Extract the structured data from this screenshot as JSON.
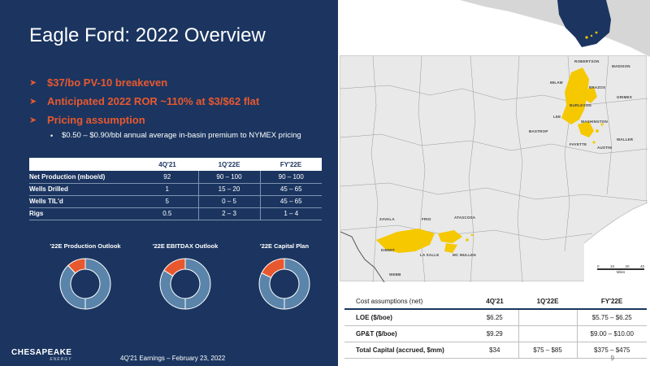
{
  "title": "Eagle Ford: 2022 Overview",
  "bullets": [
    "$37/bo PV-10 breakeven",
    "Anticipated 2022 ROR ~110% at $3/$62 flat",
    "Pricing assumption"
  ],
  "sub_bullet": "$0.50 – $0.90/bbl annual average in-basin premium to NYMEX pricing",
  "ops_table": {
    "headers": [
      "",
      "4Q'21",
      "1Q'22E",
      "FY'22E"
    ],
    "rows": [
      [
        "Net Production (mboe/d)",
        "92",
        "90 – 100",
        "90 – 100"
      ],
      [
        "Wells Drilled",
        "1",
        "15 – 20",
        "45 – 65"
      ],
      [
        "Wells TIL'd",
        "5",
        "0 – 5",
        "45 – 65"
      ],
      [
        "Rigs",
        "0.5",
        "2 – 3",
        "1 – 4"
      ]
    ]
  },
  "donuts": [
    {
      "title": "'22E Production Outlook",
      "highlight_fraction": 0.12
    },
    {
      "title": "'22E EBITDAX Outlook",
      "highlight_fraction": 0.16
    },
    {
      "title": "'22E Capital Plan",
      "highlight_fraction": 0.18
    }
  ],
  "donut_colors": {
    "base": "#5b84aa",
    "highlight": "#e8582f",
    "divider": "#ffffff"
  },
  "map": {
    "labels": [
      "ROBERTSON",
      "MADISON",
      "MILAM",
      "BRAZOS",
      "GRIMES",
      "BURLESON",
      "LEE",
      "WASHINGTON",
      "BASTROP",
      "FAYETTE",
      "AUSTIN",
      "WALLER",
      "ZAVALA",
      "FRIO",
      "ATASCOSA",
      "DIMMIT",
      "LA SALLE",
      "MC MULLEN",
      "WEBB"
    ],
    "scale_ticks": [
      "0",
      "10",
      "20",
      "40"
    ],
    "scale_unit": "Miles"
  },
  "cost_table": {
    "headers": [
      "Cost assumptions (net)",
      "4Q'21",
      "1Q'22E",
      "FY'22E"
    ],
    "rows": [
      [
        "LOE ($/boe)",
        "$6.25",
        "",
        "$5.75 – $6.25"
      ],
      [
        "GP&T ($/boe)",
        "$9.29",
        "",
        "$9.00 – $10.00"
      ],
      [
        "Total Capital (accrued, $mm)",
        "$34",
        "$75 – $85",
        "$375 – $475"
      ]
    ]
  },
  "logo": {
    "brand": "CHESAPEAKE",
    "sub": "ENERGY"
  },
  "footer": "4Q'21 Earnings – February 23, 2022",
  "page_number": "9",
  "colors": {
    "navy": "#1b3560",
    "accent": "#e8582f",
    "well_yellow": "#f5c800"
  }
}
